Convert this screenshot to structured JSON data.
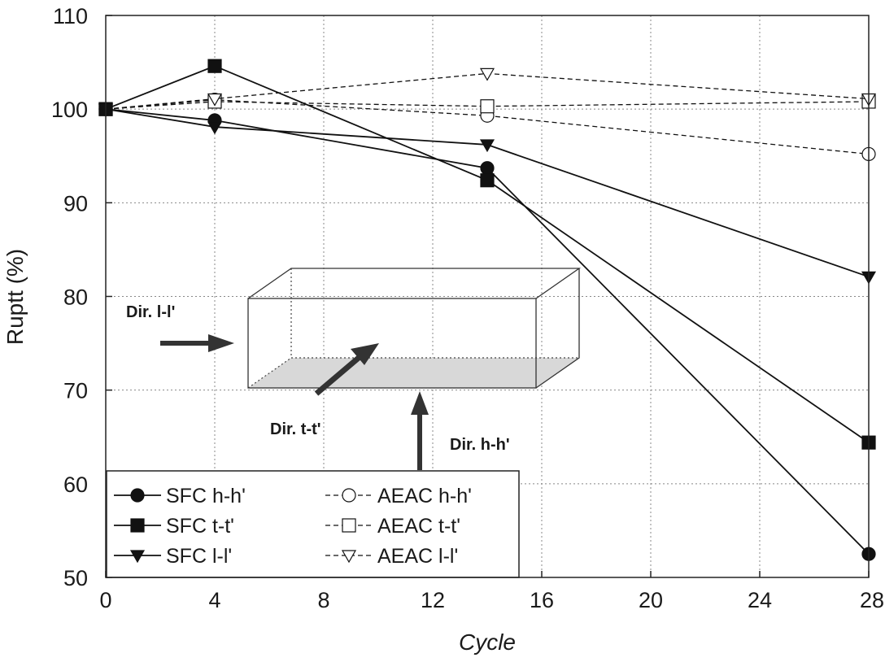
{
  "chart_data": {
    "type": "line",
    "xlabel": "Cycle",
    "ylabel": "Ruptt (%)",
    "xlim": [
      0,
      28
    ],
    "ylim": [
      50,
      110
    ],
    "xticks": [
      0,
      4,
      8,
      12,
      16,
      20,
      24,
      28
    ],
    "yticks": [
      50,
      60,
      70,
      80,
      90,
      100,
      110
    ],
    "grid": true,
    "legend_position": "bottom-left",
    "series": [
      {
        "name": "SFC h-h'",
        "marker": "filled-circle",
        "line": "solid",
        "x": [
          0,
          4,
          14,
          28
        ],
        "y": [
          100,
          98.8,
          93.7,
          52.5
        ]
      },
      {
        "name": "SFC t-t'",
        "marker": "filled-square",
        "line": "solid",
        "x": [
          0,
          4,
          14,
          28
        ],
        "y": [
          100,
          104.6,
          92.4,
          64.4
        ]
      },
      {
        "name": "SFC l-l'",
        "marker": "filled-triangle-down",
        "line": "solid",
        "x": [
          0,
          4,
          14,
          28
        ],
        "y": [
          100,
          98.1,
          96.2,
          82.1
        ]
      },
      {
        "name": "AEAC h-h'",
        "marker": "open-circle",
        "line": "dashed",
        "x": [
          0,
          4,
          14,
          28
        ],
        "y": [
          100,
          101,
          99.3,
          95.2
        ]
      },
      {
        "name": "AEAC t-t'",
        "marker": "open-square",
        "line": "dashed",
        "x": [
          0,
          4,
          14,
          28
        ],
        "y": [
          100,
          100.8,
          100.3,
          100.8
        ]
      },
      {
        "name": "AEAC l-l'",
        "marker": "open-triangle-down",
        "line": "dashed",
        "x": [
          0,
          4,
          14,
          28
        ],
        "y": [
          100,
          101.1,
          103.8,
          101.1
        ]
      }
    ],
    "annotations": {
      "dir_l": "Dir. l-l'",
      "dir_t": "Dir. t-t'",
      "dir_h": "Dir. h-h'"
    }
  }
}
